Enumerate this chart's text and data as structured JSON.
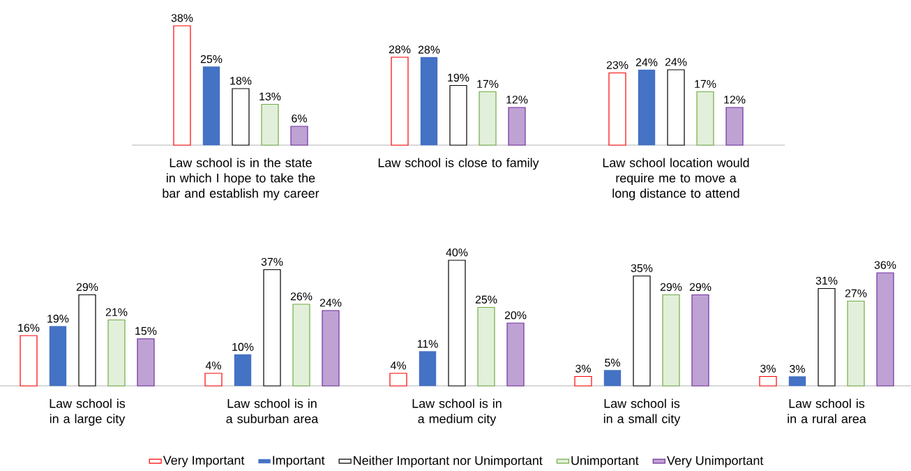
{
  "chart_data": [
    {
      "type": "bar",
      "categories": [
        "Law school is in the state in which I hope to take the bar and establish my career",
        "Law school is close to family",
        "Law school location would require me to move a long distance to attend"
      ],
      "series": [
        {
          "color": "#ff0000",
          "values": [
            38,
            28,
            23
          ],
          "value_labels": [
            "38%",
            "28%",
            "23%"
          ]
        },
        {
          "color": "#4472c4",
          "values": [
            25,
            28,
            24
          ],
          "value_labels": [
            "25%",
            "28%",
            "24%"
          ]
        },
        {
          "color": "#000000",
          "values": [
            18,
            19,
            24
          ],
          "value_labels": [
            "18%",
            "19%",
            "24%"
          ]
        },
        {
          "color": "#70ad47",
          "values": [
            13,
            17,
            17
          ],
          "value_labels": [
            "13%",
            "17%",
            "17%"
          ]
        },
        {
          "color": "#7030a0",
          "values": [
            6,
            12,
            12
          ],
          "value_labels": [
            "6%",
            "12%",
            "12%"
          ]
        }
      ],
      "legend": false
    },
    {
      "type": "bar",
      "categories": [
        "Law school is in a large city",
        "Law school is in a suburban area",
        "Law school is in a medium city",
        "Law school is in a small city",
        "Law school is in a rural area"
      ],
      "series": [
        {
          "name": "Very Important",
          "color": "#ff0000",
          "values": [
            16,
            4,
            4,
            3,
            3
          ],
          "value_labels": [
            "16%",
            "4%",
            "4%",
            "3%",
            "3%"
          ]
        },
        {
          "name": "Important",
          "color": "#4472c4",
          "values": [
            19,
            10,
            11,
            5,
            3
          ],
          "value_labels": [
            "19%",
            "10%",
            "11%",
            "5%",
            "3%"
          ]
        },
        {
          "name": "Neither Important nor Unimportant",
          "color": "#000000",
          "values": [
            29,
            37,
            40,
            35,
            31
          ],
          "value_labels": [
            "29%",
            "37%",
            "40%",
            "35%",
            "31%"
          ]
        },
        {
          "name": "Unimportant",
          "color": "#70ad47",
          "values": [
            21,
            26,
            25,
            29,
            27
          ],
          "value_labels": [
            "21%",
            "26%",
            "25%",
            "29%",
            "27%"
          ]
        },
        {
          "name": "Very Unimportant",
          "color": "#7030a0",
          "values": [
            15,
            24,
            20,
            29,
            36
          ],
          "value_labels": [
            "15%",
            "24%",
            "20%",
            "29%",
            "36%"
          ]
        }
      ],
      "legend": "bottom"
    }
  ]
}
